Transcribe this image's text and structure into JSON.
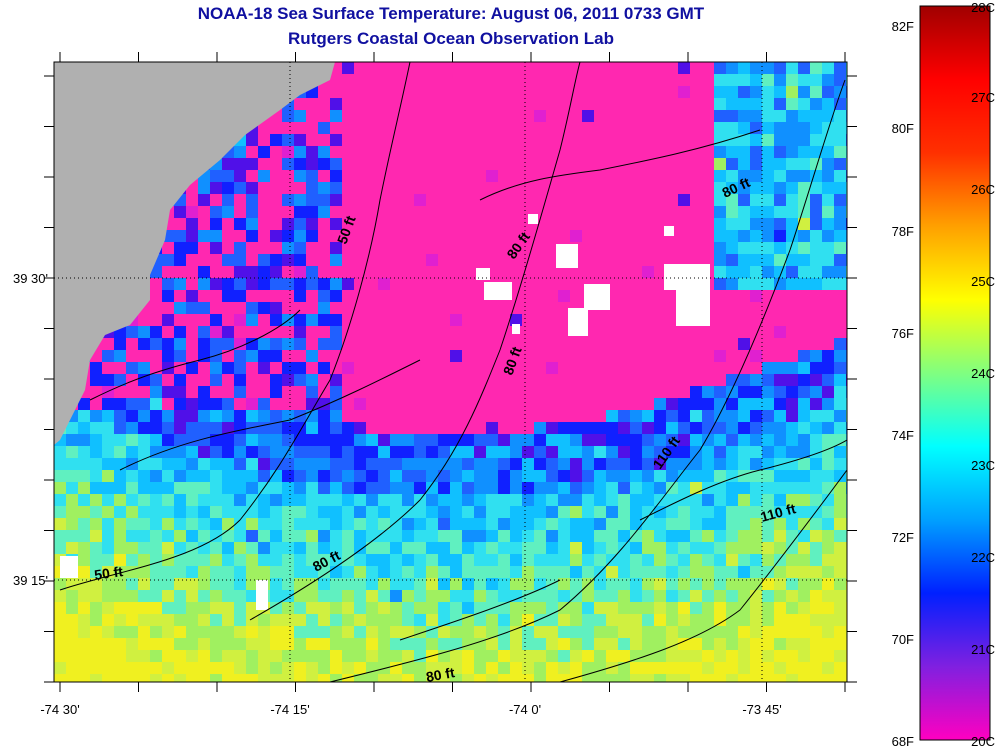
{
  "title": {
    "line1": "NOAA-18 Sea Surface Temperature:  August 06, 2011 0733 GMT",
    "line2": "Rutgers Coastal Ocean Observation Lab"
  },
  "map": {
    "lon_labels": [
      "-74 30'",
      "-74 15'",
      "-74 0'",
      "-73 45'"
    ],
    "lat_labels": [
      "39 30'",
      "39 15'"
    ],
    "depth_labels": [
      "50 ft",
      "80 ft",
      "80 ft",
      "80 ft",
      "110 ft",
      "110 ft",
      "50 ft",
      "80 ft",
      "80 ft"
    ],
    "land_color": "#b0b0b0",
    "cloud_color": "#ffffff"
  },
  "colorbar": {
    "fahrenheit_labels": [
      "82F",
      "80F",
      "78F",
      "76F",
      "74F",
      "72F",
      "70F",
      "68F"
    ],
    "celsius_labels": [
      "28C",
      "27C",
      "26C",
      "25C",
      "24C",
      "23C",
      "22C",
      "21C",
      "20C"
    ],
    "stops": [
      "#ff00c0",
      "#8020e0",
      "#0020ff",
      "#00a0ff",
      "#00ffff",
      "#80ff80",
      "#ffff00",
      "#ffa000",
      "#ff3000",
      "#ff0000",
      "#a00000"
    ]
  }
}
